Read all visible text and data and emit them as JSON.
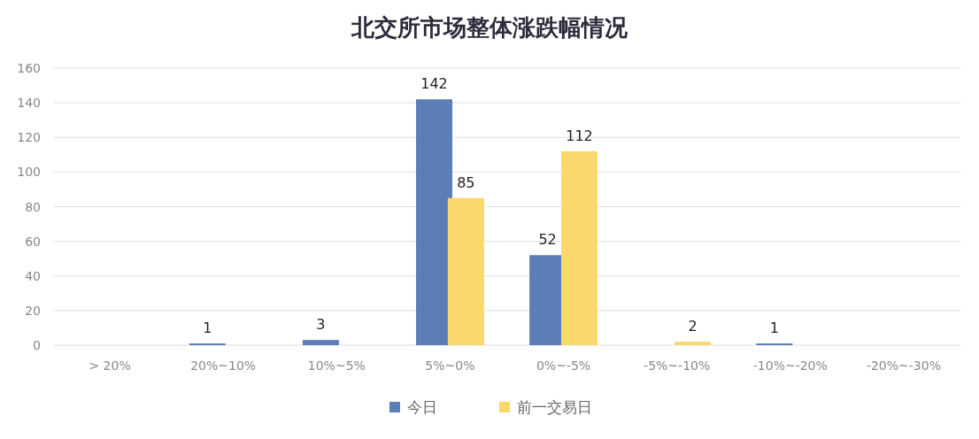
{
  "chart_data": {
    "type": "bar",
    "title": "北交所市场整体涨跌幅情况",
    "categories": [
      "> 20%",
      "20%~10%",
      "10%~5%",
      "5%~0%",
      "0%~-5%",
      "-5%~-10%",
      "-10%~-20%",
      "-20%~-30%"
    ],
    "series": [
      {
        "name": "今日",
        "color": "#5b7db8",
        "values": [
          0,
          1,
          3,
          142,
          52,
          0,
          1,
          0
        ],
        "value_labels": [
          null,
          "1",
          "3",
          "142",
          "52",
          null,
          "1",
          null
        ]
      },
      {
        "name": "前一交易日",
        "color": "#fbd86c",
        "values": [
          0,
          0,
          0,
          85,
          112,
          2,
          0,
          0
        ],
        "value_labels": [
          null,
          null,
          null,
          "85",
          "112",
          "2",
          null,
          null
        ]
      }
    ],
    "ylim": [
      0,
      160
    ],
    "yticks": [
      0,
      20,
      40,
      60,
      80,
      100,
      120,
      140,
      160
    ],
    "grid": "y",
    "legend": "bottom"
  }
}
